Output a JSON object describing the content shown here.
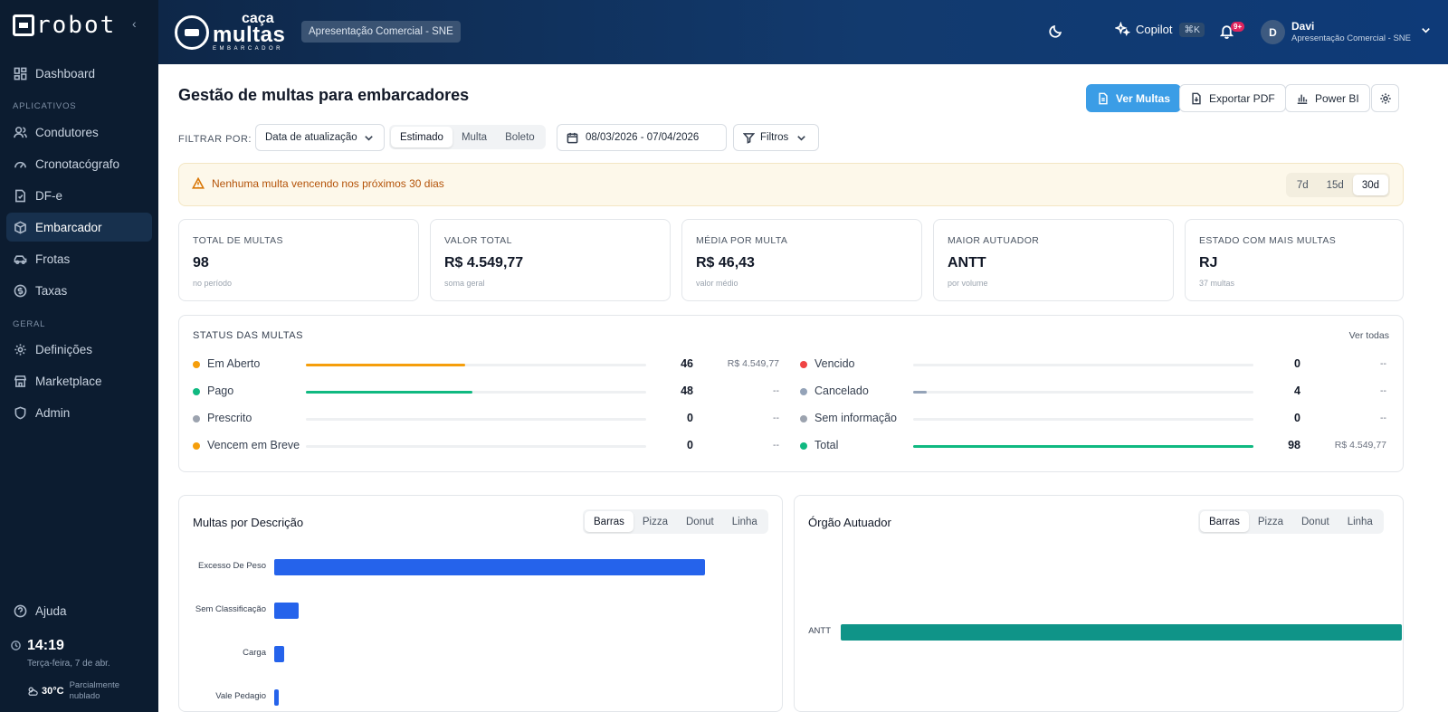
{
  "sidebar": {
    "brand": "robot",
    "items": [
      {
        "label": "Dashboard",
        "icon": "dashboard-icon"
      },
      {
        "label": "Condutores",
        "icon": "users-icon"
      },
      {
        "label": "Cronotacógrafo",
        "icon": "gauge-icon"
      },
      {
        "label": "DF-e",
        "icon": "file-icon"
      },
      {
        "label": "Embarcador",
        "icon": "package-icon",
        "active": true
      },
      {
        "label": "Frotas",
        "icon": "car-icon"
      },
      {
        "label": "Taxas",
        "icon": "dollar-icon"
      },
      {
        "label": "Definições",
        "icon": "gear-icon"
      },
      {
        "label": "Marketplace",
        "icon": "store-icon"
      },
      {
        "label": "Admin",
        "icon": "shield-icon"
      },
      {
        "label": "Ajuda",
        "icon": "help-icon"
      }
    ],
    "section_apps": "APLICATIVOS",
    "section_general": "GERAL",
    "clock": {
      "time": "14:19",
      "date": "Terça-feira, 7 de abr."
    },
    "weather": {
      "temp": "30°C",
      "desc": "Parcialmente nublado"
    }
  },
  "header": {
    "logo": {
      "line1": "caça",
      "line2": "multas",
      "line3": "EMBARCADOR"
    },
    "env_badge": "Apresentação Comercial - SNE",
    "copilot_label": "Copilot",
    "copilot_shortcut": "⌘K",
    "notif_count": "9+",
    "user": {
      "initial": "D",
      "name": "Davi",
      "org": "Apresentação Comercial - SNE"
    }
  },
  "page": {
    "title": "Gestão de multas para embarcadores",
    "actions": {
      "ver_multas": "Ver Multas",
      "exportar_pdf": "Exportar PDF",
      "power_bi": "Power BI"
    },
    "filter_label": "FILTRAR POR:",
    "filter_select": "Data de atualização",
    "value_modes": [
      "Estimado",
      "Multa",
      "Boleto"
    ],
    "value_mode_active": "Estimado",
    "date_range": "08/03/2026 - 07/04/2026",
    "filters_label": "Filtros"
  },
  "alert": {
    "text": "Nenhuma multa vencendo nos próximos 30 dias",
    "ranges": [
      "7d",
      "15d",
      "30d"
    ],
    "range_active": "30d"
  },
  "kpis": [
    {
      "label": "TOTAL DE MULTAS",
      "value": "98",
      "sub": "no período"
    },
    {
      "label": "VALOR TOTAL",
      "value": "R$ 4.549,77",
      "sub": "soma geral"
    },
    {
      "label": "MÉDIA POR MULTA",
      "value": "R$ 46,43",
      "sub": "valor médio"
    },
    {
      "label": "MAIOR AUTUADOR",
      "value": "ANTT",
      "sub": "por volume"
    },
    {
      "label": "ESTADO COM MAIS MULTAS",
      "value": "RJ",
      "sub": "37 multas"
    }
  ],
  "status": {
    "title": "STATUS DAS MULTAS",
    "link": "Ver todas",
    "total": 98,
    "left": [
      {
        "label": "Em Aberto",
        "count": 46,
        "value": "R$ 4.549,77",
        "color": "#f59e0b"
      },
      {
        "label": "Pago",
        "count": 48,
        "value": "--",
        "color": "#10b981"
      },
      {
        "label": "Prescrito",
        "count": 0,
        "value": "--",
        "color": "#9ca3af"
      },
      {
        "label": "Vencem em Breve",
        "count": 0,
        "value": "--",
        "color": "#f59e0b"
      }
    ],
    "right": [
      {
        "label": "Vencido",
        "count": 0,
        "value": "--",
        "color": "#ef4444"
      },
      {
        "label": "Cancelado",
        "count": 4,
        "value": "--",
        "color": "#94a3b8"
      },
      {
        "label": "Sem informação",
        "count": 0,
        "value": "--",
        "color": "#9ca3af"
      },
      {
        "label": "Total",
        "count": 98,
        "value": "R$ 4.549,77",
        "color": "#10b981"
      }
    ]
  },
  "chart_tabs": [
    "Barras",
    "Pizza",
    "Donut",
    "Linha"
  ],
  "chart_tab_active": "Barras",
  "chart_data": [
    {
      "type": "bar",
      "orientation": "horizontal",
      "title": "Multas por Descrição",
      "categories": [
        "Excesso De Peso",
        "Sem Classificação",
        "Carga",
        "Vale Pedagio"
      ],
      "values": [
        88,
        5,
        2,
        1
      ],
      "color": "#2563eb"
    },
    {
      "type": "bar",
      "orientation": "horizontal",
      "title": "Órgão Autuador",
      "categories": [
        "ANTT"
      ],
      "values": [
        98
      ],
      "color": "#0f9488"
    }
  ]
}
